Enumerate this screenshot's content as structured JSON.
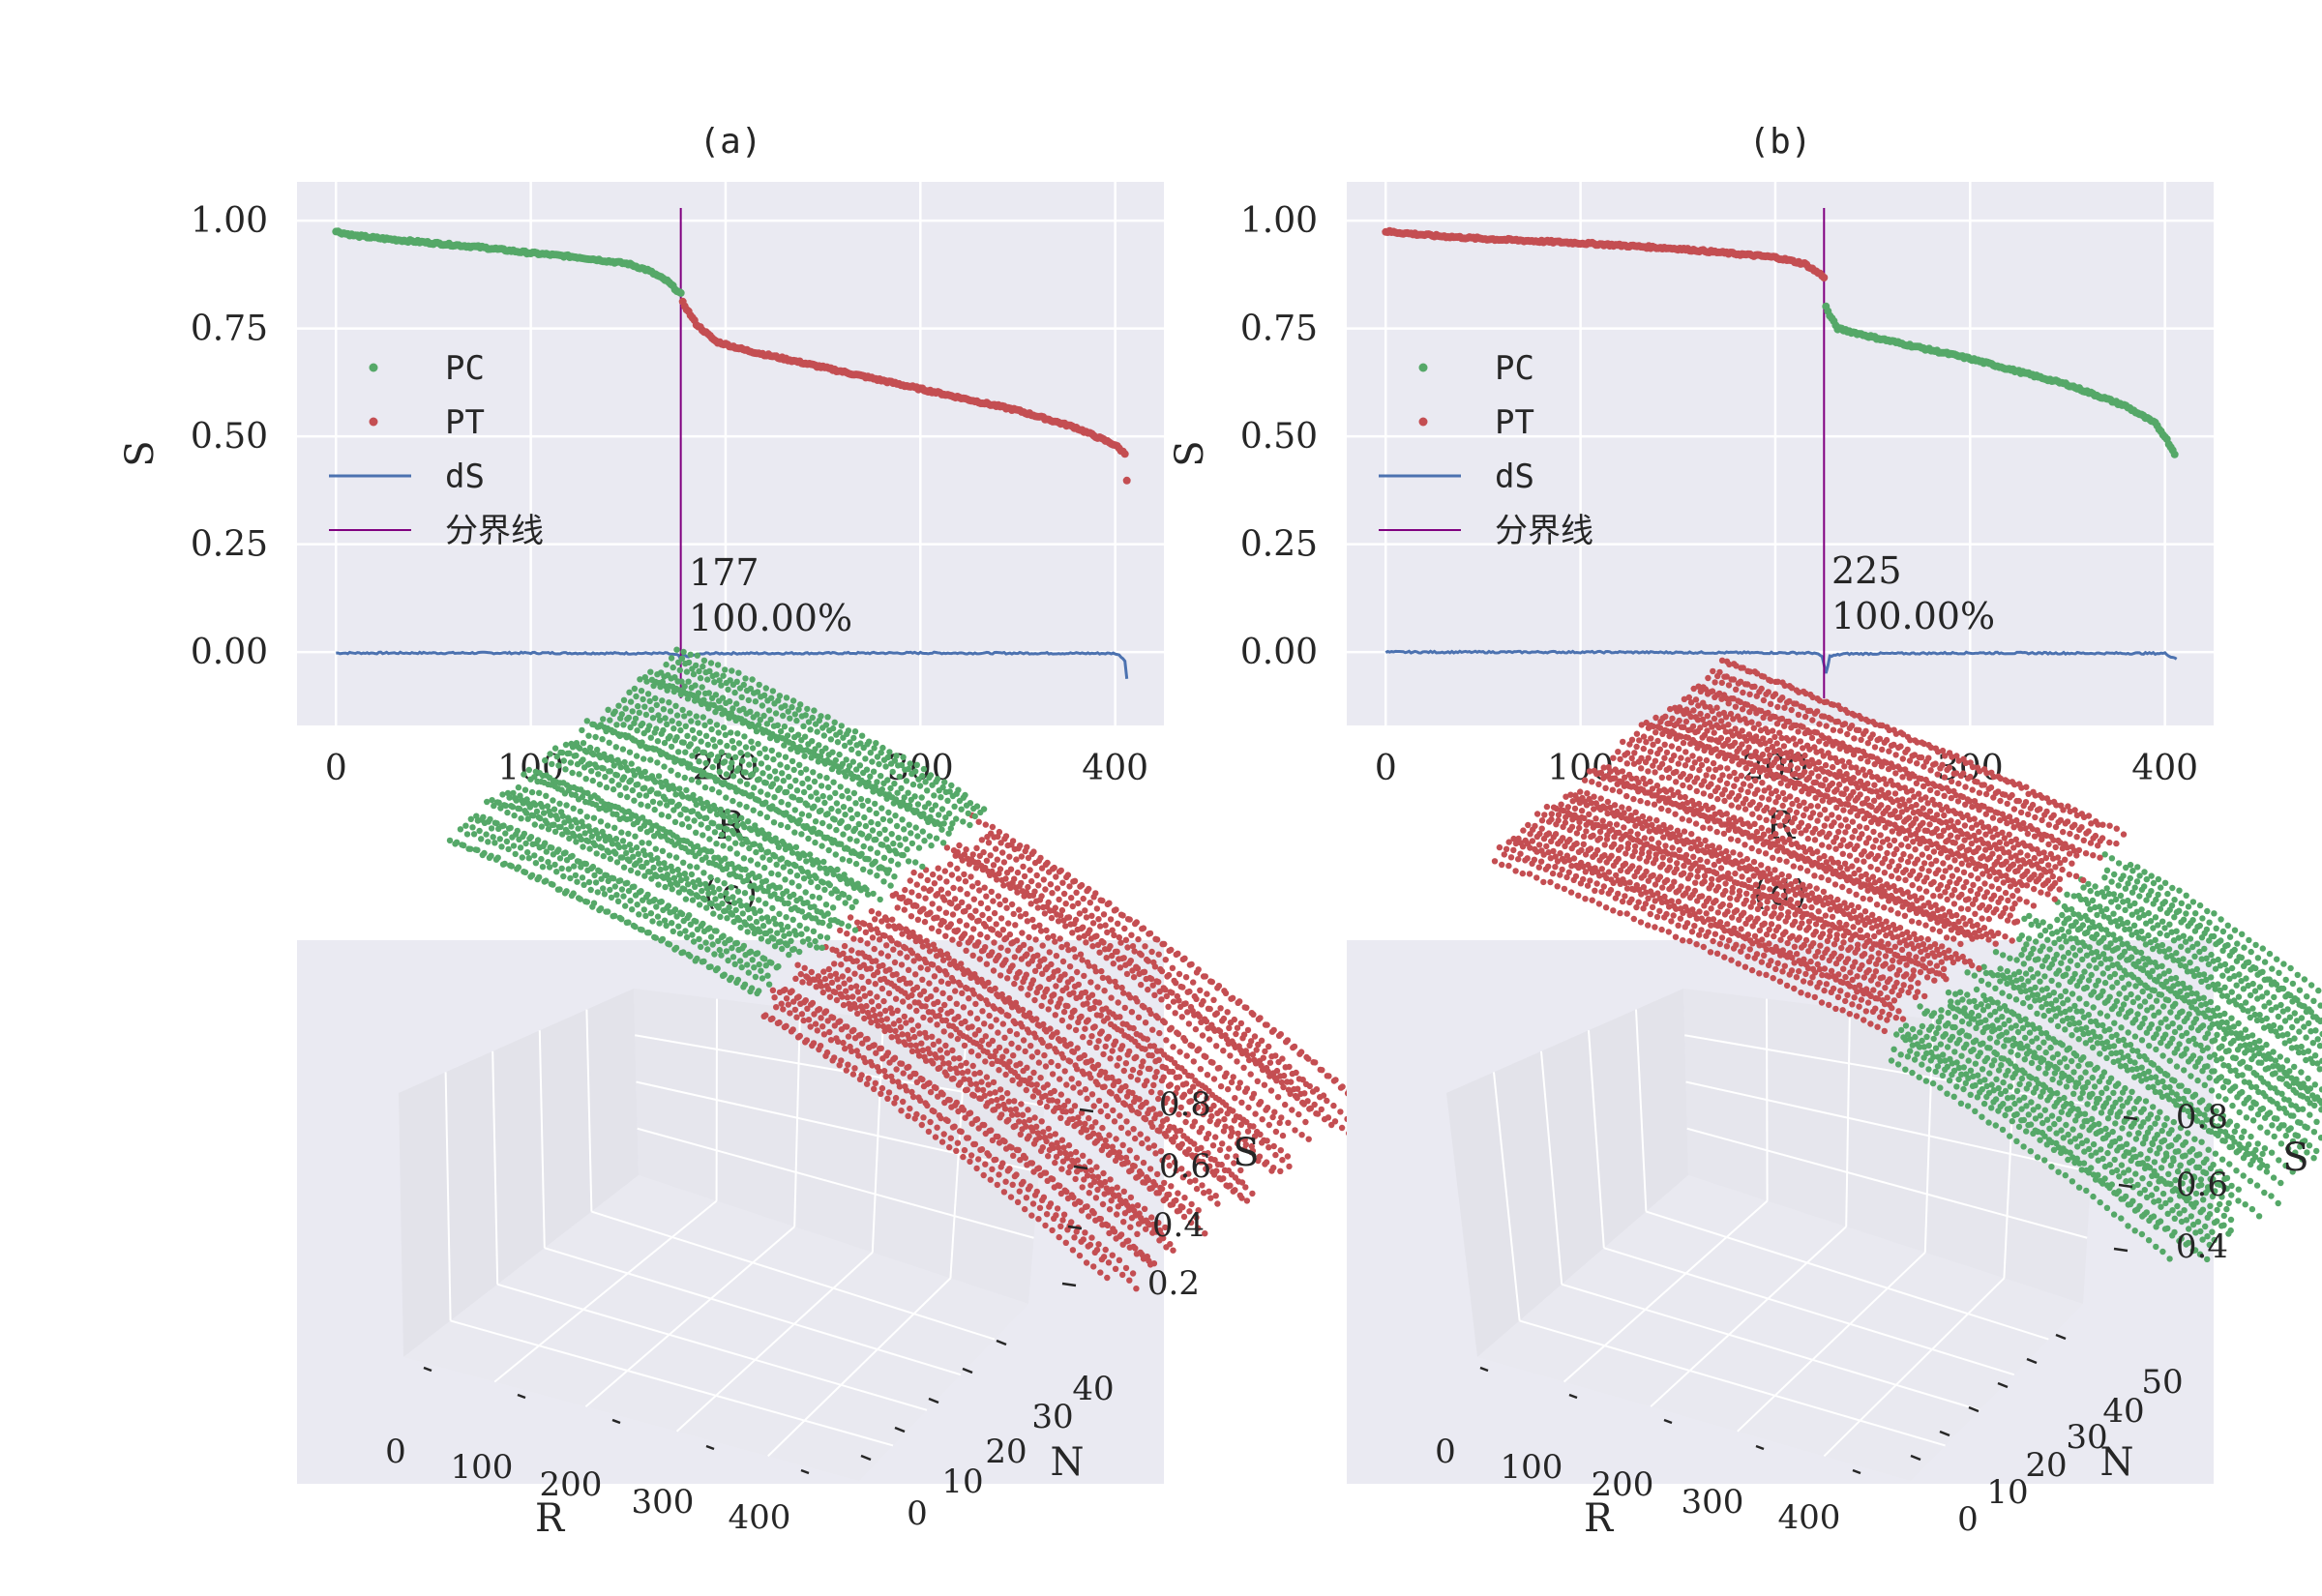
{
  "colors": {
    "pc": "#55a868",
    "pt": "#c44e52",
    "ds": "#4c72b0",
    "boundary": "#800080",
    "panel_bg": "#eaeaf2",
    "grid": "#ffffff",
    "text": "#262626"
  },
  "legend": [
    {
      "label": "PC",
      "marker": "dot",
      "color": "#55a868"
    },
    {
      "label": "PT",
      "marker": "dot",
      "color": "#c44e52"
    },
    {
      "label": "dS",
      "marker": "line",
      "color": "#4c72b0"
    },
    {
      "label": "分界线",
      "marker": "line",
      "color": "#800080"
    }
  ],
  "chart_data": [
    {
      "id": "a",
      "title": "(a)",
      "type": "scatter",
      "xlabel": "R",
      "ylabel": "S",
      "xlim": [
        -20,
        425
      ],
      "ylim": [
        -0.17,
        1.09
      ],
      "xticks": [
        0,
        100,
        200,
        300,
        400
      ],
      "xtick_labels": [
        "0",
        "100",
        "200",
        "300",
        "400"
      ],
      "yticks": [
        0.0,
        0.25,
        0.5,
        0.75,
        1.0
      ],
      "ytick_labels": [
        "0.00",
        "0.25",
        "0.50",
        "0.75",
        "1.00"
      ],
      "grid": true,
      "legend_position": "center-left",
      "boundary_x": 177,
      "annotation": {
        "line1": "177",
        "line2": "100.00%"
      },
      "series": [
        {
          "name": "PC",
          "color": "#55a868",
          "x": [
            0,
            10,
            25,
            50,
            75,
            100,
            125,
            150,
            160,
            170,
            177
          ],
          "y": [
            0.975,
            0.965,
            0.958,
            0.948,
            0.938,
            0.925,
            0.915,
            0.9,
            0.885,
            0.86,
            0.83
          ]
        },
        {
          "name": "PT",
          "color": "#c44e52",
          "x": [
            178,
            185,
            195,
            210,
            250,
            300,
            350,
            380,
            400,
            405,
            406
          ],
          "y": [
            0.81,
            0.76,
            0.72,
            0.7,
            0.66,
            0.61,
            0.56,
            0.52,
            0.48,
            0.46,
            0.4
          ]
        },
        {
          "name": "dS",
          "color": "#4c72b0",
          "x": [
            0,
            100,
            170,
            176,
            177,
            178,
            180,
            190,
            300,
            400,
            403,
            405,
            406
          ],
          "y": [
            -0.002,
            -0.002,
            -0.003,
            -0.008,
            -0.02,
            -0.005,
            -0.01,
            -0.003,
            -0.002,
            -0.003,
            -0.01,
            -0.02,
            -0.06
          ]
        }
      ]
    },
    {
      "id": "b",
      "title": "(b)",
      "type": "scatter",
      "xlabel": "R",
      "ylabel": "S",
      "xlim": [
        -20,
        425
      ],
      "ylim": [
        -0.17,
        1.09
      ],
      "xticks": [
        0,
        100,
        200,
        300,
        400
      ],
      "xtick_labels": [
        "0",
        "100",
        "200",
        "300",
        "400"
      ],
      "yticks": [
        0.0,
        0.25,
        0.5,
        0.75,
        1.0
      ],
      "ytick_labels": [
        "0.00",
        "0.25",
        "0.50",
        "0.75",
        "1.00"
      ],
      "grid": true,
      "legend_position": "center-left",
      "boundary_x": 225,
      "annotation": {
        "line1": "225",
        "line2": "100.00%"
      },
      "series": [
        {
          "name": "PT",
          "color": "#c44e52",
          "x": [
            0,
            25,
            50,
            100,
            150,
            200,
            215,
            225
          ],
          "y": [
            0.975,
            0.965,
            0.958,
            0.948,
            0.935,
            0.915,
            0.9,
            0.87
          ]
        },
        {
          "name": "PC",
          "color": "#55a868",
          "x": [
            226,
            228,
            232,
            250,
            300,
            350,
            380,
            395,
            400,
            405
          ],
          "y": [
            0.8,
            0.78,
            0.75,
            0.73,
            0.68,
            0.62,
            0.57,
            0.53,
            0.5,
            0.46
          ]
        },
        {
          "name": "dS",
          "color": "#4c72b0",
          "x": [
            0,
            100,
            220,
            224,
            225,
            226,
            228,
            235,
            300,
            400,
            403,
            406
          ],
          "y": [
            0.0,
            0.0,
            -0.002,
            -0.01,
            -0.03,
            -0.05,
            -0.01,
            -0.004,
            -0.002,
            -0.003,
            -0.01,
            -0.015
          ]
        }
      ]
    },
    {
      "id": "c",
      "title": "(c)",
      "type": "scatter3d",
      "xlabel": "R",
      "ylabel": "N",
      "zlabel": "S",
      "x_ticks": [
        "0",
        "100",
        "200",
        "300",
        "400"
      ],
      "y_ticks": [
        "0",
        "10",
        "20",
        "30",
        "40"
      ],
      "z_ticks": [
        "0.2",
        "0.4",
        "0.6",
        "0.8"
      ],
      "n_curves": 45,
      "r_max": 406,
      "boundary_r": 177,
      "before_color": "#55a868",
      "after_color": "#c44e52",
      "s_start": 0.97,
      "s_break": 0.84,
      "s_after": 0.78,
      "s_end": 0.35
    },
    {
      "id": "d",
      "title": "(d)",
      "type": "scatter3d",
      "xlabel": "R",
      "ylabel": "N",
      "zlabel": "S",
      "x_ticks": [
        "0",
        "100",
        "200",
        "300",
        "400"
      ],
      "y_ticks": [
        "0",
        "10",
        "20",
        "30",
        "40",
        "50"
      ],
      "z_ticks": [
        "0.4",
        "0.6",
        "0.8"
      ],
      "n_curves": 50,
      "r_max": 406,
      "boundary_r": 225,
      "before_color": "#c44e52",
      "after_color": "#55a868",
      "s_start": 0.97,
      "s_break": 0.87,
      "s_after": 0.78,
      "s_end": 0.45
    }
  ]
}
